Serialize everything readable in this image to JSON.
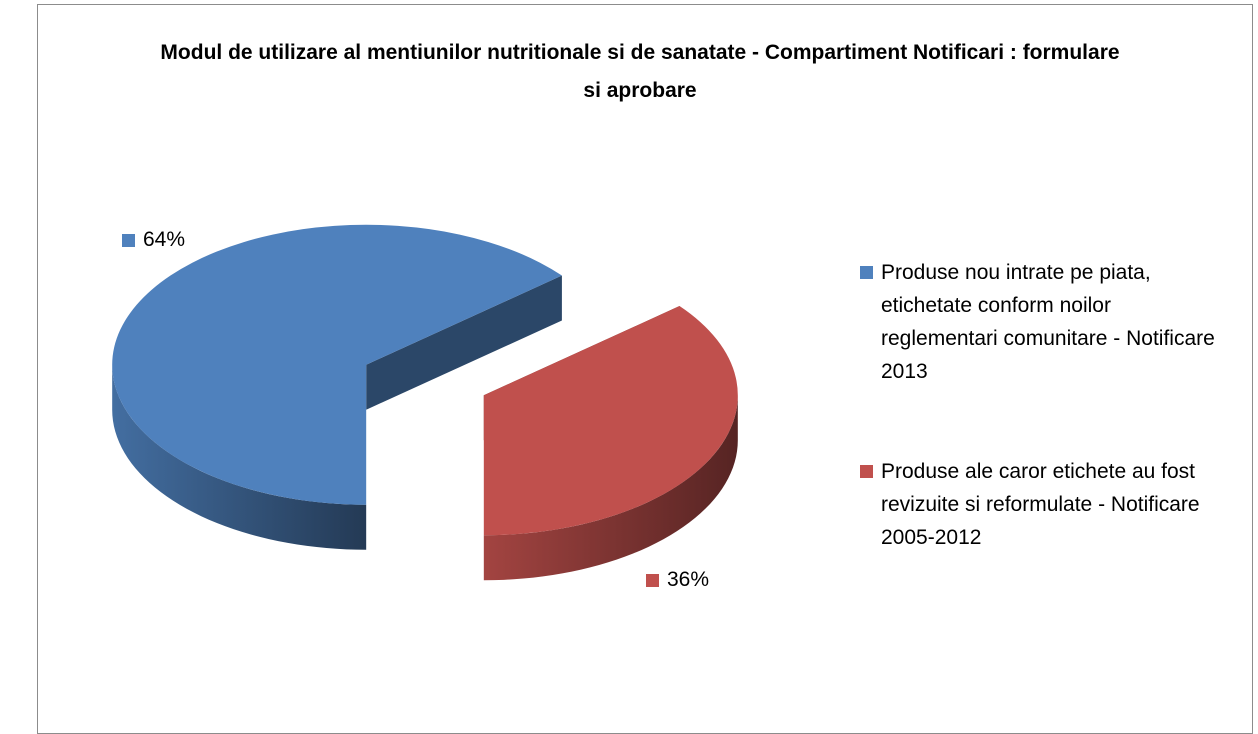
{
  "chart_data": {
    "type": "pie",
    "title": "Modul de utilizare al mentiunilor nutritionale si de sanatate - Compartiment Notificari : formulare si aprobare",
    "categories": [
      "Produse nou intrate pe piata, etichetate conform noilor reglementari comunitare - Notificare 2013",
      "Produse ale caror etichete au fost revizuite si reformulate - Notificare 2005-2012"
    ],
    "values": [
      64,
      36
    ],
    "value_labels": [
      "64%",
      "36%"
    ],
    "colors": [
      "#4f81bd",
      "#c0504d"
    ],
    "legend": "right"
  }
}
